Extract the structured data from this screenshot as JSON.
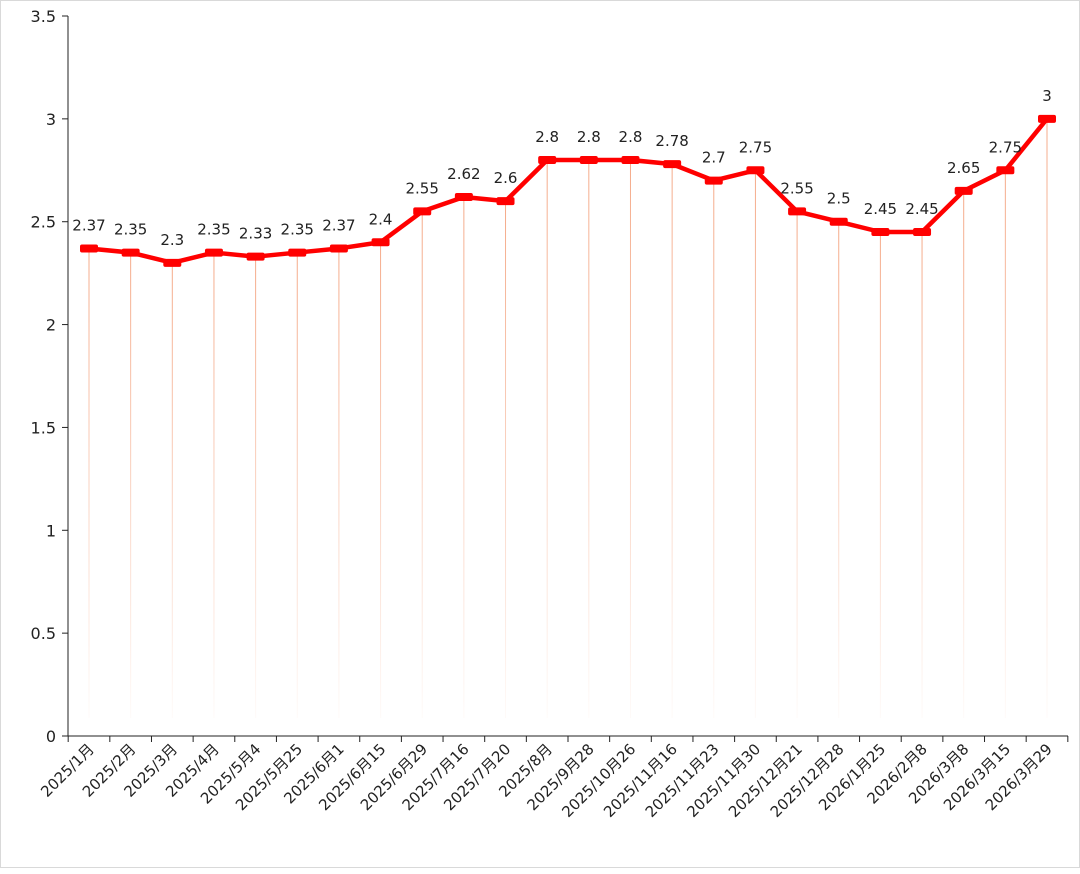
{
  "chart_data": {
    "type": "line",
    "title": "",
    "xlabel": "",
    "ylabel": "",
    "ylim": [
      0,
      3.5
    ],
    "yticks": [
      "0",
      "0.5",
      "1",
      "1.5",
      "2",
      "2.5",
      "3",
      "3.5"
    ],
    "grid": false,
    "legend": "none",
    "colors": {
      "line": "#ff0000",
      "drop_line": "#f4a582",
      "axis": "#222222"
    },
    "categories": [
      "2025/1月",
      "2025/2月",
      "2025/3月",
      "2025/4月",
      "2025/5月4",
      "2025/5月25",
      "2025/6月1",
      "2025/6月15",
      "2025/6月29",
      "2025/7月16",
      "2025/7月20",
      "2025/8月",
      "2025/9月28",
      "2025/10月26",
      "2025/11月16",
      "2025/11月23",
      "2025/11月30",
      "2025/12月21",
      "2025/12月28",
      "2026/1月25",
      "2026/2月8",
      "2026/3月8",
      "2026/3月15",
      "2026/3月29"
    ],
    "values": [
      2.37,
      2.35,
      2.3,
      2.35,
      2.33,
      2.35,
      2.37,
      2.4,
      2.55,
      2.62,
      2.6,
      2.8,
      2.8,
      2.8,
      2.78,
      2.7,
      2.75,
      2.55,
      2.5,
      2.45,
      2.45,
      2.65,
      2.75,
      3
    ],
    "data_labels": [
      "2.37",
      "2.35",
      "2.3",
      "2.35",
      "2.33",
      "2.35",
      "2.37",
      "2.4",
      "2.55",
      "2.62",
      "2.6",
      "2.8",
      "2.8",
      "2.8",
      "2.78",
      "2.7",
      "2.75",
      "2.55",
      "2.5",
      "2.45",
      "2.45",
      "2.65",
      "2.75",
      "3"
    ]
  }
}
